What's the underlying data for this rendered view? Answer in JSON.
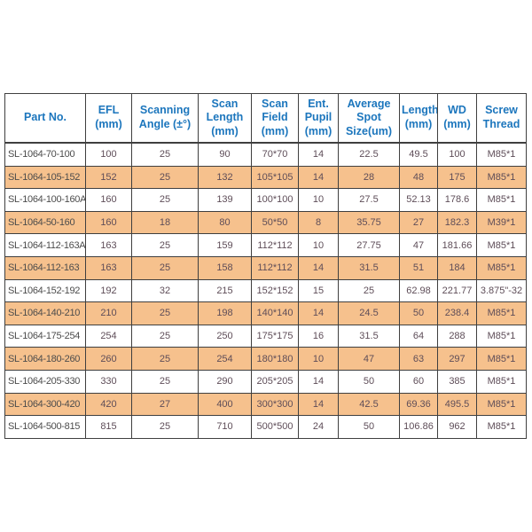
{
  "chart_data": {
    "type": "table",
    "columns": [
      "Part No.",
      "EFL (mm)",
      "Scanning Angle (±°)",
      "Scan Length (mm)",
      "Scan Field (mm)",
      "Ent. Pupil (mm)",
      "Average Spot Size(um)",
      "Length (mm)",
      "WD (mm)",
      "Screw Thread"
    ],
    "rows": [
      [
        "SL-1064-70-100",
        "100",
        "25",
        "90",
        "70*70",
        "14",
        "22.5",
        "49.5",
        "100",
        "M85*1"
      ],
      [
        "SL-1064-105-152",
        "152",
        "25",
        "132",
        "105*105",
        "14",
        "28",
        "48",
        "175",
        "M85*1"
      ],
      [
        "SL-1064-100-160A",
        "160",
        "25",
        "139",
        "100*100",
        "10",
        "27.5",
        "52.13",
        "178.6",
        "M85*1"
      ],
      [
        "SL-1064-50-160",
        "160",
        "18",
        "80",
        "50*50",
        "8",
        "35.75",
        "27",
        "182.3",
        "M39*1"
      ],
      [
        "SL-1064-112-163A",
        "163",
        "25",
        "159",
        "112*112",
        "10",
        "27.75",
        "47",
        "181.66",
        "M85*1"
      ],
      [
        "SL-1064-112-163",
        "163",
        "25",
        "158",
        "112*112",
        "14",
        "31.5",
        "51",
        "184",
        "M85*1"
      ],
      [
        "SL-1064-152-192",
        "192",
        "32",
        "215",
        "152*152",
        "15",
        "25",
        "62.98",
        "221.77",
        "3.875\"-32"
      ],
      [
        "SL-1064-140-210",
        "210",
        "25",
        "198",
        "140*140",
        "14",
        "24.5",
        "50",
        "238.4",
        "M85*1"
      ],
      [
        "SL-1064-175-254",
        "254",
        "25",
        "250",
        "175*175",
        "16",
        "31.5",
        "64",
        "288",
        "M85*1"
      ],
      [
        "SL-1064-180-260",
        "260",
        "25",
        "254",
        "180*180",
        "10",
        "47",
        "63",
        "297",
        "M85*1"
      ],
      [
        "SL-1064-205-330",
        "330",
        "25",
        "290",
        "205*205",
        "14",
        "50",
        "60",
        "385",
        "M85*1"
      ],
      [
        "SL-1064-300-420",
        "420",
        "27",
        "400",
        "300*300",
        "14",
        "42.5",
        "69.36",
        "495.5",
        "M85*1"
      ],
      [
        "SL-1064-500-815",
        "815",
        "25",
        "710",
        "500*500",
        "24",
        "50",
        "106.86",
        "962",
        "M85*1"
      ]
    ],
    "highlighted_rows": [
      1,
      3,
      5,
      7,
      9,
      11
    ],
    "legend_position": "none",
    "grid": true
  },
  "colors": {
    "header_text": "#1c76bd",
    "row_highlight": "#f6c18d",
    "grid_line": "#3f3f3f",
    "part_text": "#4c4c4c",
    "value_text": "#5e4d58",
    "background": "#ffffff"
  }
}
